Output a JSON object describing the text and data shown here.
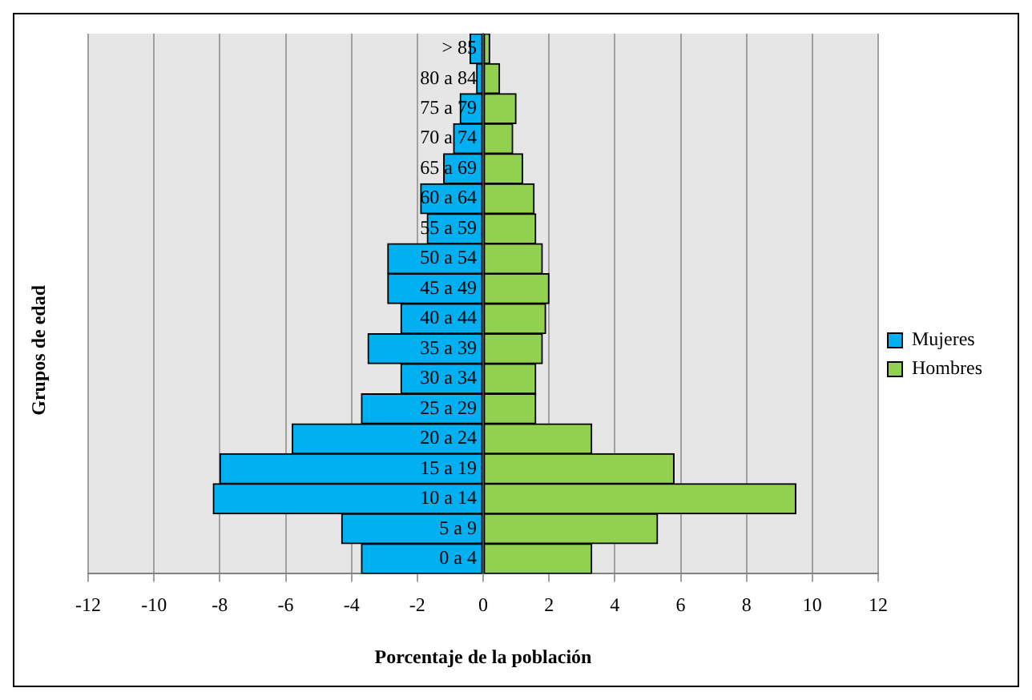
{
  "chart_data": {
    "type": "bar",
    "orientation": "horizontal",
    "stacked": true,
    "xlabel": "Porcentaje de la población",
    "ylabel": "Grupos de edad",
    "categories": [
      "> 85",
      "80 a 84",
      "75 a 79",
      "70 a 74",
      "65 a 69",
      "60 a 64",
      "55 a 59",
      "50 a 54",
      "45 a 49",
      "40 a 44",
      "35 a 39",
      "30 a 34",
      "25 a 29",
      "20 a 24",
      "15 a 19",
      "10 a 14",
      "5 a 9",
      "0 a 4"
    ],
    "series": [
      {
        "name": "Mujeres",
        "color": "#00b0f0",
        "values": [
          -0.4,
          -0.2,
          -0.7,
          -0.9,
          -1.2,
          -1.9,
          -1.7,
          -2.9,
          -2.9,
          -2.5,
          -3.5,
          -2.5,
          -3.7,
          -5.8,
          -8.0,
          -8.2,
          -4.3,
          -3.7
        ]
      },
      {
        "name": "Hombres",
        "color": "#92d050",
        "values": [
          0.2,
          0.5,
          1.0,
          0.9,
          1.2,
          1.55,
          1.6,
          1.8,
          2.0,
          1.9,
          1.8,
          1.6,
          1.6,
          3.3,
          5.8,
          9.5,
          5.3,
          3.3
        ]
      }
    ],
    "xlim": [
      -12,
      12
    ],
    "xticks": [
      -12,
      -10,
      -8,
      -6,
      -4,
      -2,
      0,
      2,
      4,
      6,
      8,
      10,
      12
    ],
    "grid": "x",
    "legend": "right"
  }
}
